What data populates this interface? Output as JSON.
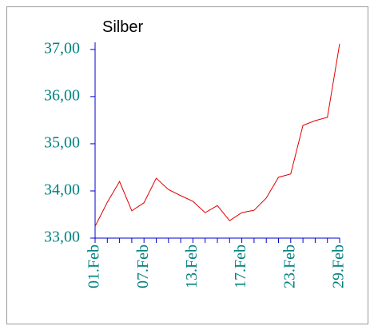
{
  "chart_data": {
    "type": "line",
    "title": "Silber",
    "categories": [
      "01.Feb",
      null,
      null,
      null,
      "07.Feb",
      null,
      null,
      null,
      "13.Feb",
      null,
      null,
      null,
      "17.Feb",
      null,
      null,
      null,
      "23.Feb",
      null,
      null,
      null,
      "29.Feb"
    ],
    "series": [
      {
        "name": "Silber",
        "color": "#e00000",
        "values": [
          33.25,
          33.76,
          34.2,
          33.58,
          33.75,
          34.27,
          34.03,
          33.9,
          33.78,
          33.54,
          33.69,
          33.37,
          33.54,
          33.59,
          33.85,
          34.29,
          34.36,
          35.39,
          35.49,
          35.56,
          37.12
        ]
      }
    ],
    "ylim": [
      33,
      37.15
    ],
    "yticks": [
      {
        "value": 33,
        "label": "33,00"
      },
      {
        "value": 34,
        "label": "34,00"
      },
      {
        "value": 35,
        "label": "35,00"
      },
      {
        "value": 36,
        "label": "36,00"
      },
      {
        "value": 37,
        "label": "37,00"
      }
    ],
    "axis_color": "#0000cc",
    "label_color": "#008080"
  }
}
